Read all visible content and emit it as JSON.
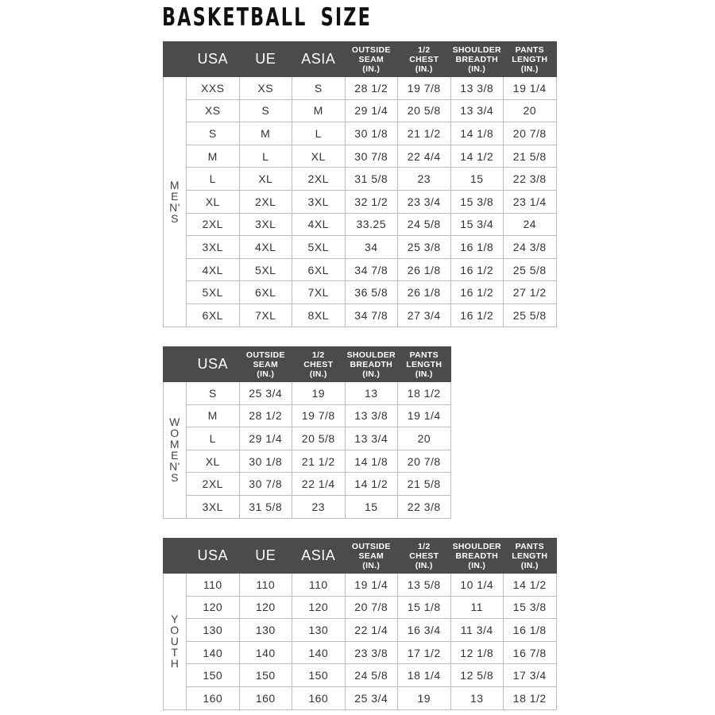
{
  "title": "BASKETBALL  SIZE",
  "colors": {
    "header_bg": "#4b4b4b",
    "header_text": "#ffffff",
    "grid": "#bdbdbd"
  },
  "tables": {
    "men": {
      "side_label": [
        "M",
        "E",
        "N'",
        "S"
      ],
      "headers": [
        [
          "USA"
        ],
        [
          "UE"
        ],
        [
          "ASIA"
        ],
        [
          "OUTSIDE",
          "SEAM",
          "(IN.)"
        ],
        [
          "1/2",
          "CHEST",
          "(IN.)"
        ],
        [
          "SHOULDER",
          "BREADTH",
          "(IN.)"
        ],
        [
          "PANTS",
          "LENGTH",
          "(IN.)"
        ]
      ],
      "rows": [
        [
          "XXS",
          "XS",
          "S",
          "28 1/2",
          "19 7/8",
          "13 3/8",
          "19 1/4"
        ],
        [
          "XS",
          "S",
          "M",
          "29 1/4",
          "20 5/8",
          "13 3/4",
          "20"
        ],
        [
          "S",
          "M",
          "L",
          "30 1/8",
          "21 1/2",
          "14 1/8",
          "20 7/8"
        ],
        [
          "M",
          "L",
          "XL",
          "30 7/8",
          "22 4/4",
          "14 1/2",
          "21 5/8"
        ],
        [
          "L",
          "XL",
          "2XL",
          "31 5/8",
          "23",
          "15",
          "22 3/8"
        ],
        [
          "XL",
          "2XL",
          "3XL",
          "32 1/2",
          "23 3/4",
          "15 3/8",
          "23 1/4"
        ],
        [
          "2XL",
          "3XL",
          "4XL",
          "33.25",
          "24 5/8",
          "15 3/4",
          "24"
        ],
        [
          "3XL",
          "4XL",
          "5XL",
          "34",
          "25 3/8",
          "16 1/8",
          "24 3/8"
        ],
        [
          "4XL",
          "5XL",
          "6XL",
          "34 7/8",
          "26 1/8",
          "16 1/2",
          "25 5/8"
        ],
        [
          "5XL",
          "6XL",
          "7XL",
          "36 5/8",
          "26 1/8",
          "16 1/2",
          "27 1/2"
        ],
        [
          "6XL",
          "7XL",
          "8XL",
          "34 7/8",
          "27 3/4",
          "16 1/2",
          "25 5/8"
        ]
      ]
    },
    "women": {
      "side_label": [
        "W",
        "O",
        "M",
        "E",
        "N'",
        "S"
      ],
      "headers": [
        [
          "USA"
        ],
        [
          "OUTSIDE",
          "SEAM",
          "(IN.)"
        ],
        [
          "1/2",
          "CHEST",
          "(IN.)"
        ],
        [
          "SHOULDER",
          "BREADTH",
          "(IN.)"
        ],
        [
          "PANTS",
          "LENGTH",
          "(IN.)"
        ]
      ],
      "rows": [
        [
          "S",
          "25 3/4",
          "19",
          "13",
          "18 1/2"
        ],
        [
          "M",
          "28 1/2",
          "19 7/8",
          "13 3/8",
          "19 1/4"
        ],
        [
          "L",
          "29 1/4",
          "20 5/8",
          "13 3/4",
          "20"
        ],
        [
          "XL",
          "30 1/8",
          "21 1/2",
          "14 1/8",
          "20 7/8"
        ],
        [
          "2XL",
          "30 7/8",
          "22 1/4",
          "14 1/2",
          "21 5/8"
        ],
        [
          "3XL",
          "31 5/8",
          "23",
          "15",
          "22 3/8"
        ]
      ]
    },
    "youth": {
      "side_label": [
        "Y",
        "O",
        "U",
        "T",
        "H"
      ],
      "headers": [
        [
          "USA"
        ],
        [
          "UE"
        ],
        [
          "ASIA"
        ],
        [
          "OUTSIDE",
          "SEAM",
          "(IN.)"
        ],
        [
          "1/2",
          "CHEST",
          "(IN.)"
        ],
        [
          "SHOULDER",
          "BREADTH",
          "(IN.)"
        ],
        [
          "PANTS",
          "LENGTH",
          "(IN.)"
        ]
      ],
      "rows": [
        [
          "110",
          "110",
          "110",
          "19 1/4",
          "13 5/8",
          "10 1/4",
          "14 1/2"
        ],
        [
          "120",
          "120",
          "120",
          "20 7/8",
          "15 1/8",
          "11",
          "15 3/8"
        ],
        [
          "130",
          "130",
          "130",
          "22 1/4",
          "16 3/4",
          "11 3/4",
          "16 1/8"
        ],
        [
          "140",
          "140",
          "140",
          "23 3/8",
          "17 1/2",
          "12 1/8",
          "16 7/8"
        ],
        [
          "150",
          "150",
          "150",
          "24 5/8",
          "18 1/4",
          "12 5/8",
          "17 3/4"
        ],
        [
          "160",
          "160",
          "160",
          "25 3/4",
          "19",
          "13",
          "18 1/2"
        ]
      ]
    }
  }
}
